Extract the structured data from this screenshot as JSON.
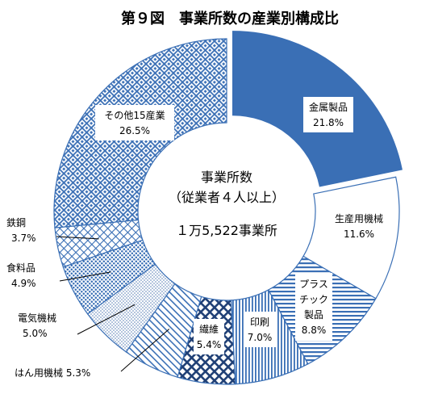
{
  "chart_data": {
    "type": "donut",
    "title": "第９図　事業所数の産業別構成比",
    "center_text": [
      "事業所数",
      "（従業者４人以上）",
      "１万5,522事業所"
    ],
    "categories": [
      "金属製品",
      "生産用機械",
      "プラスチック製品",
      "印刷",
      "繊維",
      "はん用機械",
      "電気機械",
      "食料品",
      "鉄鋼",
      "その他15産業"
    ],
    "values": [
      21.8,
      11.6,
      8.8,
      7.0,
      5.4,
      5.3,
      5.0,
      4.9,
      3.7,
      26.5
    ],
    "value_labels": [
      "21.8%",
      "11.6%",
      "8.8%",
      "7.0%",
      "5.4%",
      "5.3%",
      "5.0%",
      "4.9%",
      "3.7%",
      "26.5%"
    ],
    "unit": "%",
    "colors": {
      "navy": "#1f3f75",
      "blue": "#3a6fb5",
      "mid": "#5a7fb5",
      "pale": "#9fb8d8"
    },
    "patterns": [
      "solid",
      "blank",
      "horizontal-stripes",
      "vertical-stripes",
      "diagonal-cross",
      "diagonal-lines",
      "dots-small",
      "dots-large",
      "crosshatch",
      "diamond-lattice"
    ]
  }
}
